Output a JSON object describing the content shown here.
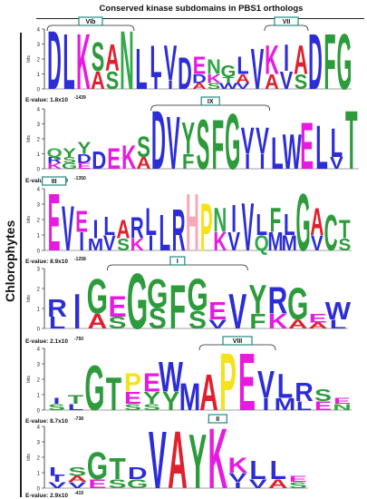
{
  "figure": {
    "title": "Conserved kinase subdomains in PBS1 orthologs",
    "group_label": "Chlorophytes",
    "axis_label": "bits",
    "colors": {
      "A": "#e0202e",
      "C": "#2d9b3b",
      "D": "#2d2dd8",
      "E": "#e71ae0",
      "F": "#2d9b3b",
      "G": "#2d9b3b",
      "H": "#f6a8b8",
      "I": "#2d2dd8",
      "K": "#e71ae0",
      "L": "#2d2dd8",
      "M": "#2d2dd8",
      "N": "#31a84a",
      "P": "#f5e21d",
      "Q": "#31a84a",
      "R": "#2d2dd8",
      "S": "#2d9b3b",
      "T": "#2d9b3b",
      "V": "#2d2dd8",
      "W": "#2d2dd8",
      "Y": "#2d9b3b",
      "X": "#888888"
    }
  },
  "logos": [
    {
      "evalue_label": "E-value:",
      "evalue_base": "1.8x10",
      "evalue_exp": "-1439",
      "yticks": [
        "0",
        "1",
        "2",
        "3",
        "4"
      ],
      "boxes": [
        {
          "label": "VIb",
          "start": 0,
          "end": 5
        },
        {
          "label": "VII",
          "start": 15,
          "end": 17
        }
      ],
      "columns": [
        [
          "D"
        ],
        [
          "L"
        ],
        [
          "K"
        ],
        [
          "S",
          "A"
        ],
        [
          "A",
          "S"
        ],
        [
          "N"
        ],
        [
          "L"
        ],
        [
          "L",
          "I"
        ],
        [
          "V",
          "I"
        ],
        [
          "D"
        ],
        [
          "E",
          "D",
          "A"
        ],
        [
          "N",
          "K",
          "S"
        ],
        [
          "G",
          "T",
          "W"
        ],
        [
          "L",
          "A",
          "V"
        ],
        [
          "V"
        ],
        [
          "K",
          "A"
        ],
        [
          "I",
          "V"
        ],
        [
          "A",
          "S"
        ],
        [
          "D"
        ],
        [
          "F"
        ],
        [
          "G"
        ]
      ]
    },
    {
      "evalue_label": "E-value:",
      "evalue_base": "1.8x10",
      "evalue_exp": "-1350",
      "yticks": [
        "0",
        "1",
        "2",
        "3",
        "4"
      ],
      "boxes": [
        {
          "label": "IX",
          "start": 7,
          "end": 14
        }
      ],
      "columns": [
        [
          "Q",
          "R",
          "K"
        ],
        [
          "Y",
          "S",
          "G"
        ],
        [
          "Y",
          "D",
          "E"
        ],
        [
          "D"
        ],
        [
          "E"
        ],
        [
          "K"
        ],
        [
          "S",
          "A"
        ],
        [
          "D"
        ],
        [
          "V"
        ],
        [
          "Y",
          "F"
        ],
        [
          "S"
        ],
        [
          "F"
        ],
        [
          "G"
        ],
        [
          "V",
          "I"
        ],
        [
          "V",
          "I"
        ],
        [
          "L"
        ],
        [
          "W"
        ],
        [
          "E"
        ],
        [
          "L"
        ],
        [
          "L",
          "V"
        ],
        [
          "T"
        ]
      ]
    },
    {
      "evalue_label": "E-value:",
      "evalue_base": "8.9x10",
      "evalue_exp": "-1258",
      "yticks": [
        "0",
        "1",
        "2",
        "3",
        "4"
      ],
      "boxes": [
        {
          "label": "III",
          "start": 0,
          "end": 0
        }
      ],
      "columns": [
        [
          "E"
        ],
        [
          "V"
        ],
        [
          "E",
          "I"
        ],
        [
          "I",
          "M"
        ],
        [
          "L",
          "V"
        ],
        [
          "A",
          "S"
        ],
        [
          "R",
          "K"
        ],
        [
          "L",
          "I"
        ],
        [
          "L"
        ],
        [
          "R"
        ],
        [
          "H"
        ],
        [
          "P"
        ],
        [
          "N",
          "K"
        ],
        [
          "I",
          "V"
        ],
        [
          "V"
        ],
        [
          "L",
          "Q"
        ],
        [
          "F",
          "M"
        ],
        [
          "L",
          "M"
        ],
        [
          "G"
        ],
        [
          "A",
          "V"
        ],
        [
          "C"
        ],
        [
          "T",
          "S"
        ]
      ]
    },
    {
      "evalue_label": "E-value:",
      "evalue_base": "2.1x10",
      "evalue_exp": "-750",
      "yticks": [
        "0",
        "1",
        "2",
        "3"
      ],
      "boxes": [
        {
          "label": "I",
          "start": 3,
          "end": 9
        }
      ],
      "columns": [
        [
          "R",
          "L"
        ],
        [
          "I"
        ],
        [
          "G",
          "A"
        ],
        [
          "E",
          "S"
        ],
        [
          "G"
        ],
        [
          "G",
          "S"
        ],
        [
          "F"
        ],
        [
          "G",
          "S"
        ],
        [
          "E",
          "V"
        ],
        [
          "V"
        ],
        [
          "Y",
          "F"
        ],
        [
          "R",
          "K"
        ],
        [
          "G",
          "A"
        ],
        [
          "E",
          "A"
        ],
        [
          "W",
          "L"
        ]
      ]
    },
    {
      "evalue_label": "E-value:",
      "evalue_base": "8.7x10",
      "evalue_exp": "-738",
      "yticks": [
        "0",
        "1",
        "2",
        "3",
        "4"
      ],
      "boxes": [
        {
          "label": "VIII",
          "start": 8,
          "end": 11
        }
      ],
      "columns": [
        [
          "I",
          "S"
        ],
        [
          "T",
          "L"
        ],
        [
          "G"
        ],
        [
          "T"
        ],
        [
          "P",
          "E",
          "S"
        ],
        [
          "E",
          "Y",
          "S"
        ],
        [
          "W",
          "Y"
        ],
        [
          "M"
        ],
        [
          "A"
        ],
        [
          "P"
        ],
        [
          "E"
        ],
        [
          "V",
          "I"
        ],
        [
          "L",
          "M"
        ],
        [
          "R",
          "L"
        ],
        [
          "S",
          "E"
        ],
        [
          "E",
          "N"
        ]
      ]
    },
    {
      "evalue_label": "E-value:",
      "evalue_base": "2.9x10",
      "evalue_exp": "-419",
      "yticks": [
        "0",
        "1",
        "2",
        "3",
        "4"
      ],
      "boxes": [
        {
          "label": "II",
          "start": 8,
          "end": 8
        }
      ],
      "columns": [
        [
          "L",
          "I",
          "V"
        ],
        [
          "S",
          "A",
          "V"
        ],
        [
          "G",
          "E"
        ],
        [
          "T",
          "S"
        ],
        [
          "D",
          "G"
        ],
        [
          "V"
        ],
        [
          "A"
        ],
        [
          "Y"
        ],
        [
          "K"
        ],
        [
          "K",
          "V",
          "I"
        ],
        [
          "L",
          "V"
        ],
        [
          "L",
          "A"
        ],
        [
          "E",
          "S"
        ]
      ]
    }
  ]
}
